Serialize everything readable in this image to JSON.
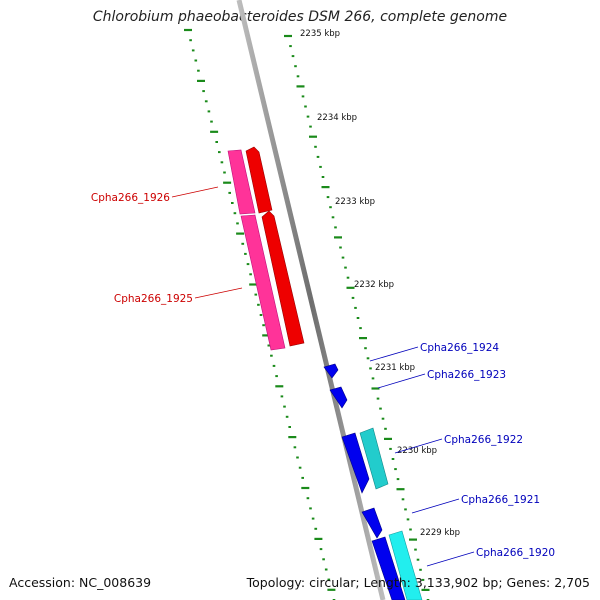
{
  "title": "Chlorobium phaeobacteroides DSM 266, complete genome",
  "footer": {
    "accession": "Accession: NC_008639",
    "topology": "Topology: circular; Length: 3,133,902 bp; Genes: 2,705"
  },
  "colors": {
    "backbone": "#8a8a8a",
    "tick": "#1a8a1a",
    "reverse_strand_outer": "#ff3399",
    "reverse_strand_inner": "#ee0000",
    "forward_strand_inner": "#0000ee",
    "forward_strand_outer": "#22cccc",
    "reverse_label": "#cc0000",
    "forward_label": "#0000bb"
  },
  "kbp_labels": [
    "2235 kbp",
    "2234 kbp",
    "2233 kbp",
    "2232 kbp",
    "2231 kbp",
    "2230 kbp",
    "2229 kbp"
  ],
  "genes": [
    {
      "name": "Cpha266_1926",
      "strand": "reverse"
    },
    {
      "name": "Cpha266_1925",
      "strand": "reverse"
    },
    {
      "name": "Cpha266_1924",
      "strand": "forward"
    },
    {
      "name": "Cpha266_1923",
      "strand": "forward"
    },
    {
      "name": "Cpha266_1922",
      "strand": "forward"
    },
    {
      "name": "Cpha266_1921",
      "strand": "forward"
    },
    {
      "name": "Cpha266_1920",
      "strand": "forward"
    }
  ]
}
